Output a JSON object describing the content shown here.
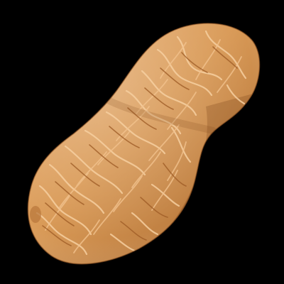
{
  "image": {
    "subject": "peanut-in-shell",
    "background_color": "#000000"
  },
  "palette": {
    "shell_light": "#EDB57A",
    "shell_mid": "#D99A57",
    "shell_dark": "#A8672D",
    "shell_shadow": "#7A4418",
    "ridge_light": "#F6CFA0",
    "ridge_dark": "#9C5A24"
  }
}
